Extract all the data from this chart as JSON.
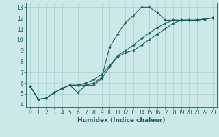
{
  "title": "",
  "xlabel": "Humidex (Indice chaleur)",
  "ylabel": "",
  "background_color": "#cce8e8",
  "grid_color": "#aacece",
  "line_color": "#1a6060",
  "xlim": [
    -0.5,
    23.5
  ],
  "ylim": [
    3.8,
    13.4
  ],
  "yticks": [
    4,
    5,
    6,
    7,
    8,
    9,
    10,
    11,
    12,
    13
  ],
  "xticks": [
    0,
    1,
    2,
    3,
    4,
    5,
    6,
    7,
    8,
    9,
    10,
    11,
    12,
    13,
    14,
    15,
    16,
    17,
    18,
    19,
    20,
    21,
    22,
    23
  ],
  "line1_x": [
    0,
    1,
    2,
    3,
    4,
    5,
    6,
    7,
    8,
    9,
    10,
    11,
    12,
    13,
    14,
    15,
    16,
    17,
    18,
    19,
    20,
    21,
    22,
    23
  ],
  "line1_y": [
    5.7,
    4.5,
    4.6,
    5.1,
    5.5,
    5.8,
    5.8,
    5.8,
    6.0,
    6.5,
    9.3,
    10.5,
    11.6,
    12.2,
    13.0,
    13.0,
    12.5,
    11.8,
    11.8,
    11.8,
    11.8,
    11.8,
    11.9,
    12.0
  ],
  "line2_x": [
    0,
    1,
    2,
    3,
    4,
    5,
    6,
    7,
    8,
    9,
    10,
    11,
    12,
    13,
    14,
    15,
    16,
    17,
    18,
    19,
    20,
    21,
    22,
    23
  ],
  "line2_y": [
    5.7,
    4.5,
    4.6,
    5.1,
    5.5,
    5.8,
    5.8,
    6.0,
    6.3,
    6.8,
    7.6,
    8.5,
    9.0,
    9.5,
    10.1,
    10.6,
    11.1,
    11.5,
    11.8,
    11.8,
    11.8,
    11.8,
    11.9,
    12.0
  ],
  "line3_x": [
    0,
    1,
    2,
    3,
    4,
    5,
    6,
    7,
    8,
    9,
    10,
    11,
    12,
    13,
    14,
    15,
    16,
    17,
    18,
    19,
    20,
    21,
    22,
    23
  ],
  "line3_y": [
    5.7,
    4.5,
    4.6,
    5.1,
    5.5,
    5.8,
    5.1,
    5.8,
    5.8,
    6.4,
    7.5,
    8.4,
    8.8,
    9.0,
    9.5,
    10.0,
    10.5,
    11.0,
    11.5,
    11.8,
    11.8,
    11.8,
    11.9,
    12.0
  ],
  "tick_fontsize": 5.5,
  "xlabel_fontsize": 6.5,
  "marker_size": 1.8,
  "line_width": 0.8
}
